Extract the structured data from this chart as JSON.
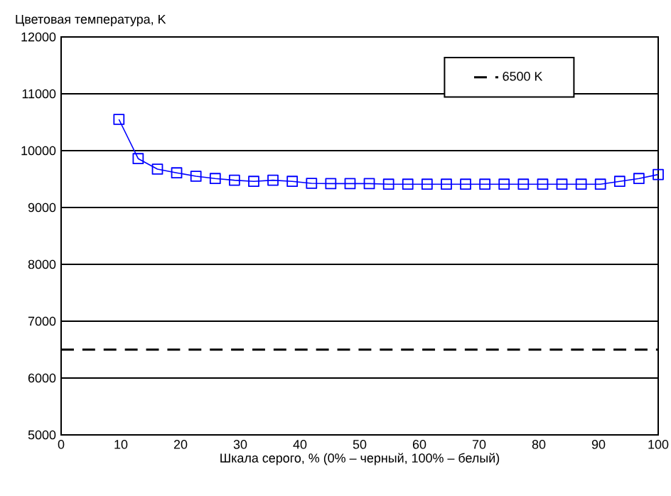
{
  "chart_data": {
    "type": "line",
    "ylabel": "Цветовая температура, K",
    "xlabel": "Шкала серого, % (0% – черный, 100% – белый)",
    "x": [
      9.68,
      12.9,
      16.13,
      19.35,
      22.58,
      25.81,
      29.03,
      32.26,
      35.48,
      38.71,
      41.94,
      45.16,
      48.39,
      51.61,
      54.84,
      58.06,
      61.29,
      64.52,
      67.74,
      70.97,
      74.19,
      77.42,
      80.65,
      83.87,
      87.1,
      90.32,
      93.55,
      96.77,
      100
    ],
    "series": [
      {
        "color": "#0000ff",
        "values": [
          10550,
          9860,
          9675,
          9610,
          9550,
          9510,
          9480,
          9460,
          9480,
          9460,
          9425,
          9420,
          9420,
          9420,
          9410,
          9410,
          9410,
          9410,
          9410,
          9410,
          9410,
          9410,
          9410,
          9410,
          9410,
          9410,
          9460,
          9510,
          9580
        ]
      }
    ],
    "ref_lines": [
      {
        "axis": "y",
        "value": 6500,
        "label": "6500 K",
        "color": "#000000",
        "line_style": "dashed"
      }
    ],
    "xlim": [
      0,
      100
    ],
    "xticks": [
      0,
      10,
      20,
      30,
      40,
      50,
      60,
      70,
      80,
      90,
      100
    ],
    "ylim": [
      5000,
      12000
    ],
    "yticks": [
      5000,
      6000,
      7000,
      8000,
      9000,
      10000,
      11000,
      12000
    ],
    "grid": "y",
    "legend": "top right",
    "marker": "square",
    "line_style": "solid"
  }
}
